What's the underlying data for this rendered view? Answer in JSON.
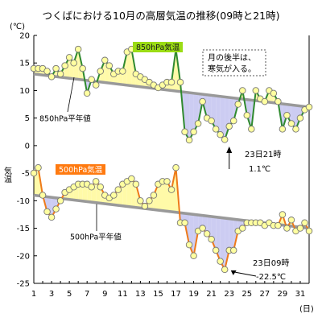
{
  "title": "つくばにおける10月の高層気温の推移(09時と21時)",
  "chart_data": {
    "type": "line",
    "xlabel": "(日)",
    "ylabel": "(℃)",
    "side_label": "気温",
    "xlim": [
      1,
      32
    ],
    "ylim": [
      -25,
      20
    ],
    "x_ticks": [
      1,
      3,
      5,
      7,
      9,
      11,
      13,
      15,
      17,
      19,
      21,
      23,
      25,
      27,
      29,
      31
    ],
    "y_ticks": [
      20,
      15,
      10,
      5,
      0,
      -5,
      -10,
      -15,
      -20,
      -25
    ],
    "grid": false,
    "series": [
      {
        "name": "850hPa気温",
        "color": "#2f8a2f",
        "marker_fill": "#ffffa0",
        "x": [
          1,
          1.5,
          2,
          2.5,
          3,
          3.5,
          4,
          4.5,
          5,
          5.5,
          6,
          6.5,
          7,
          7.5,
          8,
          8.5,
          9,
          9.5,
          10,
          10.5,
          11,
          11.5,
          12,
          12.5,
          13,
          13.5,
          14,
          14.5,
          15,
          15.5,
          16,
          16.5,
          17,
          17.5,
          18,
          18.5,
          19,
          19.5,
          20,
          20.5,
          21,
          21.5,
          22,
          22.5,
          23,
          23.5,
          24,
          24.5,
          25,
          25.5,
          26,
          26.5,
          27,
          27.5,
          28,
          28.5,
          29,
          29.5,
          30,
          30.5,
          31,
          31.5,
          32
        ],
        "values": [
          14,
          14,
          14,
          13.5,
          12.5,
          14,
          13,
          14.5,
          16,
          15,
          17.5,
          14,
          9.5,
          12,
          11,
          13.5,
          15.5,
          14.5,
          13,
          13.5,
          13.5,
          17,
          17.5,
          13,
          12.5,
          12,
          11.5,
          11,
          10.5,
          11,
          11.5,
          11.5,
          17.5,
          11.5,
          2.5,
          1,
          2.5,
          4,
          8,
          5,
          4.5,
          3,
          2,
          1.1,
          3.5,
          4.5,
          7.5,
          10,
          5.5,
          3,
          10,
          8.5,
          8,
          10,
          9.5,
          8,
          3,
          5.5,
          4,
          3,
          5,
          6.5,
          7
        ]
      },
      {
        "name": "850hPa平年値",
        "color": "#999999",
        "x": [
          1,
          32
        ],
        "values": [
          13,
          7
        ]
      },
      {
        "name": "500hPa気温",
        "color": "#ee7a1a",
        "marker_fill": "#ffffa0",
        "x": [
          1,
          1.5,
          2,
          2.5,
          3,
          3.5,
          4,
          4.5,
          5,
          5.5,
          6,
          6.5,
          7,
          7.5,
          8,
          8.5,
          9,
          9.5,
          10,
          10.5,
          11,
          11.5,
          12,
          12.5,
          13,
          13.5,
          14,
          14.5,
          15,
          15.5,
          16,
          16.5,
          17,
          17.5,
          18,
          18.5,
          19,
          19.5,
          20,
          20.5,
          21,
          21.5,
          22,
          22.5,
          23,
          23.5,
          24,
          24.5,
          25,
          25.5,
          26,
          26.5,
          27,
          27.5,
          28,
          28.5,
          29,
          29.5,
          30,
          30.5,
          31,
          31.5,
          32
        ],
        "values": [
          -5,
          -4,
          -9,
          -12,
          -13,
          -11.5,
          -10,
          -8.5,
          -8,
          -7.5,
          -7,
          -7,
          -7,
          -7.5,
          -6.5,
          -7.5,
          -9,
          -9.5,
          -9,
          -8,
          -7,
          -6.5,
          -6,
          -7,
          -10,
          -11,
          -10,
          -9,
          -7,
          -6.5,
          -6.5,
          -8,
          -4,
          -14,
          -14,
          -18,
          -20,
          -15.5,
          -15,
          -16,
          -17,
          -19,
          -21,
          -22.5,
          -19,
          -19,
          -15.5,
          -15,
          -14,
          -14,
          -14,
          -14,
          -14.5,
          -14,
          -14.5,
          -14.5,
          -12.5,
          -15,
          -13.5,
          -15.5,
          -15,
          -14,
          -15.5
        ]
      },
      {
        "name": "500hPa平年値",
        "color": "#999999",
        "x": [
          1,
          32
        ],
        "values": [
          -9,
          -15
        ]
      }
    ],
    "annotations": [
      {
        "text": "月の後半は、",
        "x": 27,
        "y": 16
      },
      {
        "text": "寒気が入る。",
        "x": 27,
        "y": 13.5
      },
      {
        "text": "23日21時",
        "x": 25,
        "y": -1.5
      },
      {
        "text": "1.1℃",
        "x": 25.5,
        "y": -4
      },
      {
        "text": "23日09時",
        "x": 25,
        "y": -21
      },
      {
        "text": "-22.5℃",
        "x": 25.5,
        "y": -23.3
      }
    ]
  }
}
